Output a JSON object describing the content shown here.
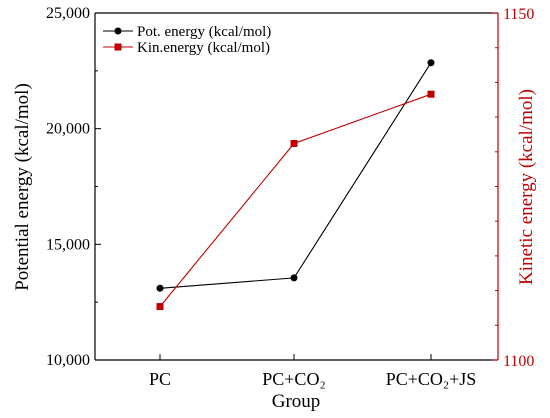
{
  "chart_data": {
    "type": "line",
    "categories": [
      "PC",
      "PC+CO₂",
      "PC+CO₂+JS"
    ],
    "xlabel": "Group",
    "series": [
      {
        "name": "Pot. energy (kcal/mol)",
        "axis": "left",
        "color": "#000000",
        "marker": "circle",
        "values": [
          13100,
          13550,
          22850
        ]
      },
      {
        "name": "Kin.energy (kcal/mol)",
        "axis": "right",
        "color": "#c00000",
        "marker": "square",
        "values": [
          1107.7,
          1131.2,
          1138.3
        ]
      }
    ],
    "y_left": {
      "label": "Potential energy (kcal/mol)",
      "range": [
        10000,
        25000
      ],
      "ticks": [
        "10,000",
        "15,000",
        "20,000",
        "25,000"
      ],
      "tick_values": [
        10000,
        15000,
        20000,
        25000
      ],
      "color": "#000000"
    },
    "y_right": {
      "label": "Kinetic energy (kcal/mol)",
      "range": [
        1100,
        1150
      ],
      "ticks": [
        "1100",
        "1150"
      ],
      "tick_values": [
        1100,
        1150
      ],
      "color": "#c00000"
    },
    "legend_position": "top-left",
    "grid": false
  }
}
